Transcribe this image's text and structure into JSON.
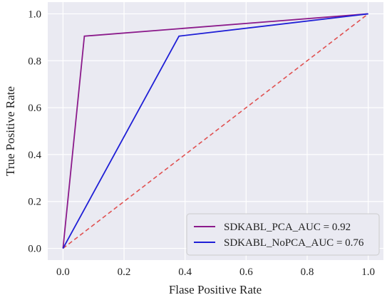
{
  "chart_data": {
    "type": "line",
    "xlabel": "Flase Positive Rate",
    "ylabel": "True Positive Rate",
    "xlim": [
      -0.05,
      1.05
    ],
    "ylim": [
      -0.05,
      1.05
    ],
    "x_ticks": [
      "0.0",
      "0.2",
      "0.4",
      "0.6",
      "0.8",
      "1.0"
    ],
    "y_ticks": [
      "0.0",
      "0.2",
      "0.4",
      "0.6",
      "0.8",
      "1.0"
    ],
    "grid": true,
    "legend_position": "bottom-right",
    "series": [
      {
        "name": "SDKABL_PCA_AUC = 0.92",
        "color": "#8b1a8b",
        "x": [
          0.0,
          0.07,
          1.0
        ],
        "y": [
          0.0,
          0.905,
          1.0
        ]
      },
      {
        "name": "SDKABL_NoPCA_AUC = 0.76",
        "color": "#1f1fd6",
        "x": [
          0.0,
          0.38,
          1.0
        ],
        "y": [
          0.0,
          0.905,
          1.0
        ]
      }
    ],
    "reference_line": {
      "color": "#e05050",
      "style": "dashed",
      "x": [
        0.0,
        1.0
      ],
      "y": [
        0.0,
        1.0
      ]
    }
  }
}
